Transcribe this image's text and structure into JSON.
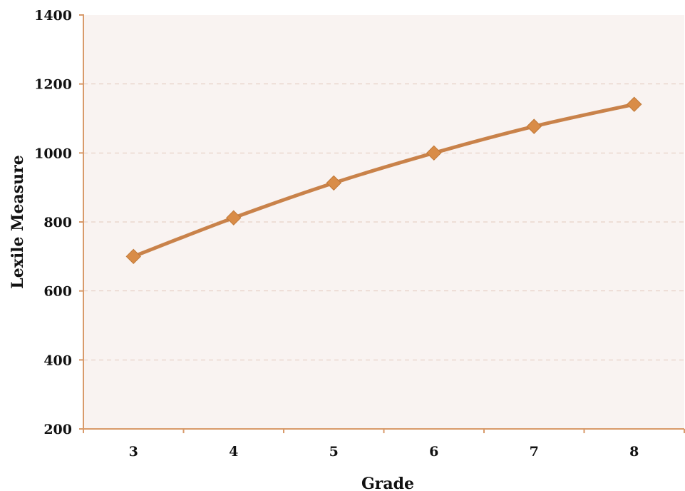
{
  "chart_data": {
    "type": "line",
    "title": "",
    "xlabel": "Grade",
    "ylabel": "Lexile Measure",
    "categories": [
      "3",
      "4",
      "5",
      "6",
      "7",
      "8"
    ],
    "series": [
      {
        "values": [
          700,
          812,
          913,
          1000,
          1077,
          1141
        ]
      }
    ],
    "ylim": [
      200,
      1400
    ],
    "yticks": [
      "200",
      "400",
      "600",
      "800",
      "1000",
      "1200",
      "1400"
    ],
    "grid": "horizontal dashed",
    "colors": {
      "line": "#C9824A",
      "marker": "#D98C47",
      "plot_background": "#F9F3F1",
      "axis": "#D89A6A",
      "grid": "#E2C9BD"
    }
  }
}
